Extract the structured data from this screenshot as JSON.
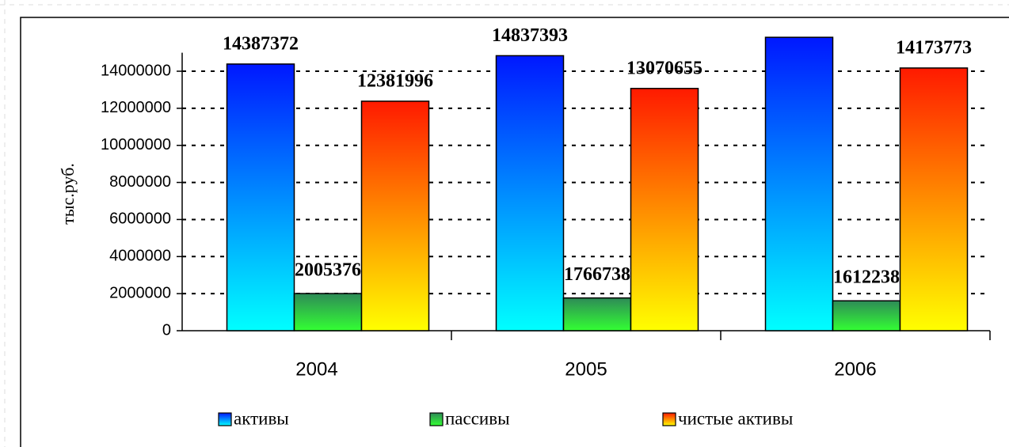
{
  "chart_data": {
    "type": "bar",
    "y_label": "тыс.руб.",
    "categories": [
      "2004",
      "2005",
      "2006"
    ],
    "series": [
      {
        "name": "активы",
        "color": [
          "#0018ff",
          "#00ffff"
        ],
        "values": [
          14387372,
          14837393,
          15830000
        ],
        "value_labels": [
          "14387372",
          "14837393",
          null
        ]
      },
      {
        "name": "пассивы",
        "color": [
          "#2e8b57",
          "#33ff33"
        ],
        "values": [
          2005376,
          1766738,
          1612238
        ],
        "value_labels": [
          "2005376",
          "1766738",
          "1612238"
        ]
      },
      {
        "name": "чистые активы",
        "color": [
          "#ff1a00",
          "#ffff00"
        ],
        "values": [
          12381996,
          13070655,
          14173773
        ],
        "value_labels": [
          "12381996",
          "13070655",
          "14173773"
        ]
      }
    ],
    "ylim": [
      0,
      15000000
    ],
    "yticks": [
      0,
      2000000,
      4000000,
      6000000,
      8000000,
      10000000,
      12000000,
      14000000
    ],
    "grid": true,
    "legend": "bottom"
  }
}
